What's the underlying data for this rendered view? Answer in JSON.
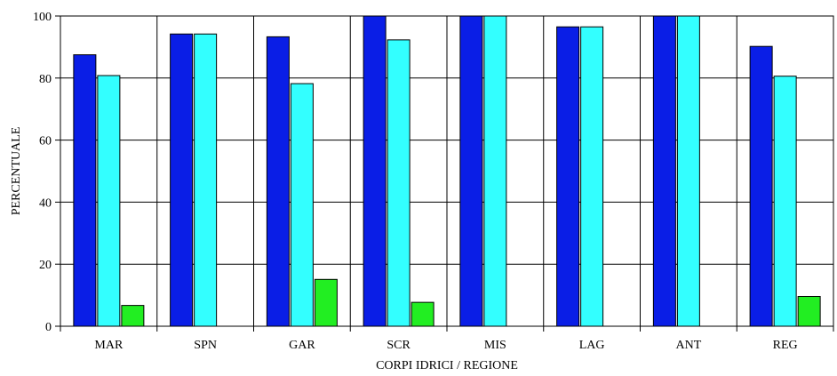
{
  "chart_data": {
    "type": "bar",
    "title": "",
    "xlabel": "CORPI IDRICI / REGIONE",
    "ylabel": "PERCENTUALE",
    "ylim": [
      0,
      100
    ],
    "yticks": [
      0,
      20,
      40,
      60,
      80,
      100
    ],
    "grid": true,
    "legend": "none",
    "categories": [
      "MAR",
      "SPN",
      "GAR",
      "SCR",
      "MIS",
      "LAG",
      "ANT",
      "REG"
    ],
    "series": [
      {
        "color": "#0A1EE6",
        "values": [
          87.5,
          94.2,
          93.3,
          100,
          100,
          96.5,
          100,
          90.2
        ]
      },
      {
        "color": "#33FFFF",
        "values": [
          80.8,
          94.2,
          78.2,
          92.3,
          100,
          96.5,
          100,
          80.6
        ]
      },
      {
        "color": "#22EE22",
        "values": [
          6.7,
          0,
          15.1,
          7.7,
          0,
          0,
          0,
          9.6
        ]
      }
    ]
  }
}
